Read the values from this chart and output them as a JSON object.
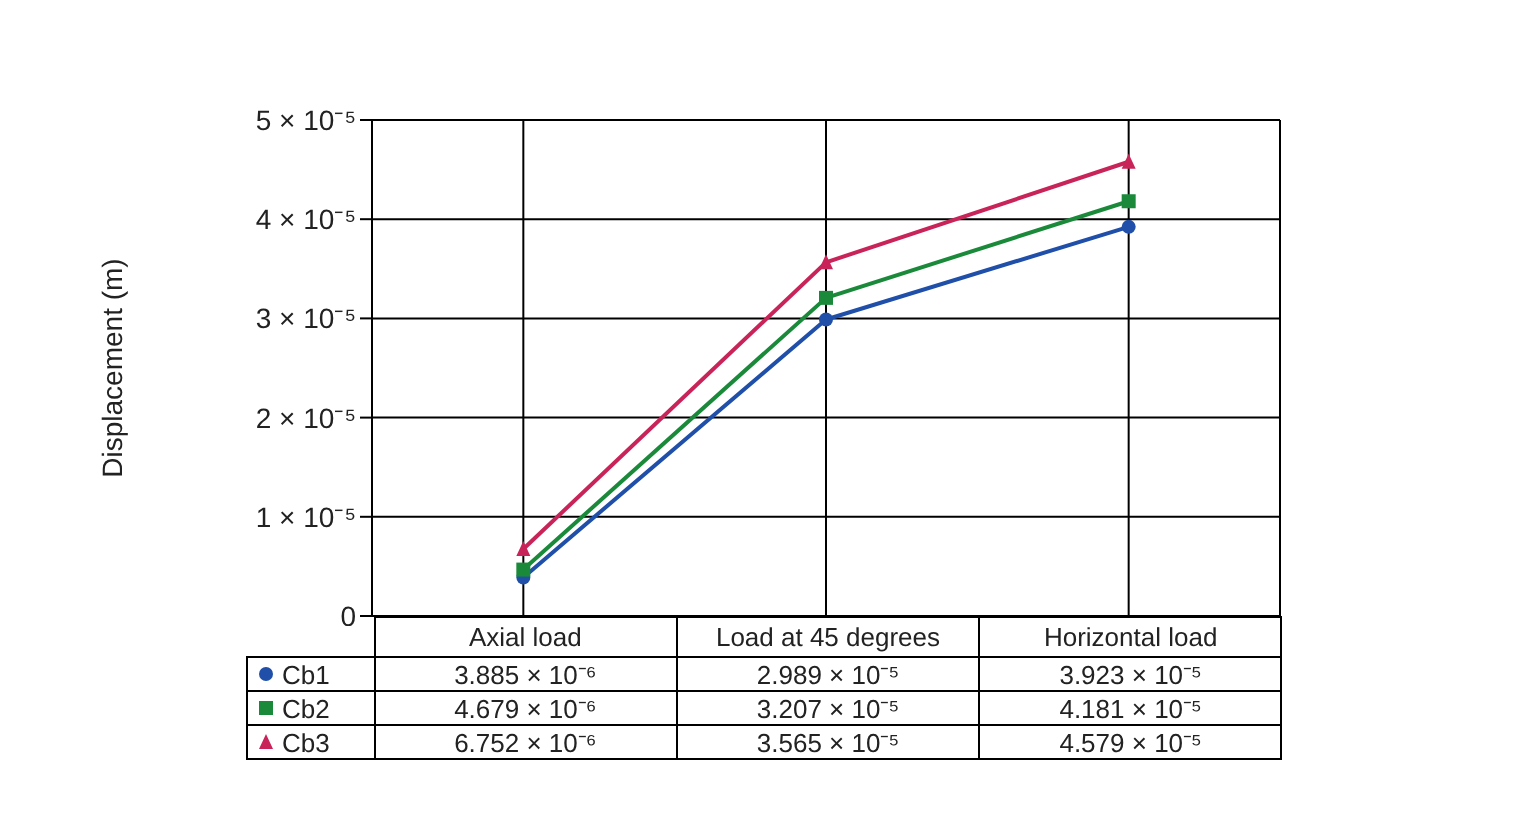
{
  "chart_data": {
    "type": "line",
    "ylabel": "Displacement (m)",
    "categories": [
      "Axial load",
      "Load at 45 degrees",
      "Horizontal load"
    ],
    "series": [
      {
        "name": "Cb1",
        "color": "#1f4fa8",
        "marker": "circle",
        "values": [
          3.885e-06,
          2.989e-05,
          3.923e-05
        ],
        "value_labels": [
          "3.885 × 10⁻⁶",
          "2.989 × 10⁻⁵",
          "3.923 × 10⁻⁵"
        ]
      },
      {
        "name": "Cb2",
        "color": "#1a8a3a",
        "marker": "square",
        "values": [
          4.679e-06,
          3.207e-05,
          4.181e-05
        ],
        "value_labels": [
          "4.679 × 10⁻⁶",
          "3.207 × 10⁻⁵",
          "4.181 × 10⁻⁵"
        ]
      },
      {
        "name": "Cb3",
        "color": "#c8245a",
        "marker": "triangle",
        "values": [
          6.752e-06,
          3.565e-05,
          4.579e-05
        ],
        "value_labels": [
          "6.752 × 10⁻⁶",
          "3.565 × 10⁻⁵",
          "4.579 × 10⁻⁵"
        ]
      }
    ],
    "ylim": [
      0,
      5e-05
    ],
    "yticks": [
      0,
      {
        "value": 1e-05,
        "label": "1 × 10⁻⁵"
      },
      {
        "value": 2e-05,
        "label": "2 × 10⁻⁵"
      },
      {
        "value": 3e-05,
        "label": "3 × 10⁻⁵"
      },
      {
        "value": 4e-05,
        "label": "4 × 10⁻⁵"
      },
      {
        "value": 5e-05,
        "label": "5 × 10⁻⁵"
      }
    ],
    "grid": true,
    "legend": "bottom left",
    "line_style": "solid"
  }
}
